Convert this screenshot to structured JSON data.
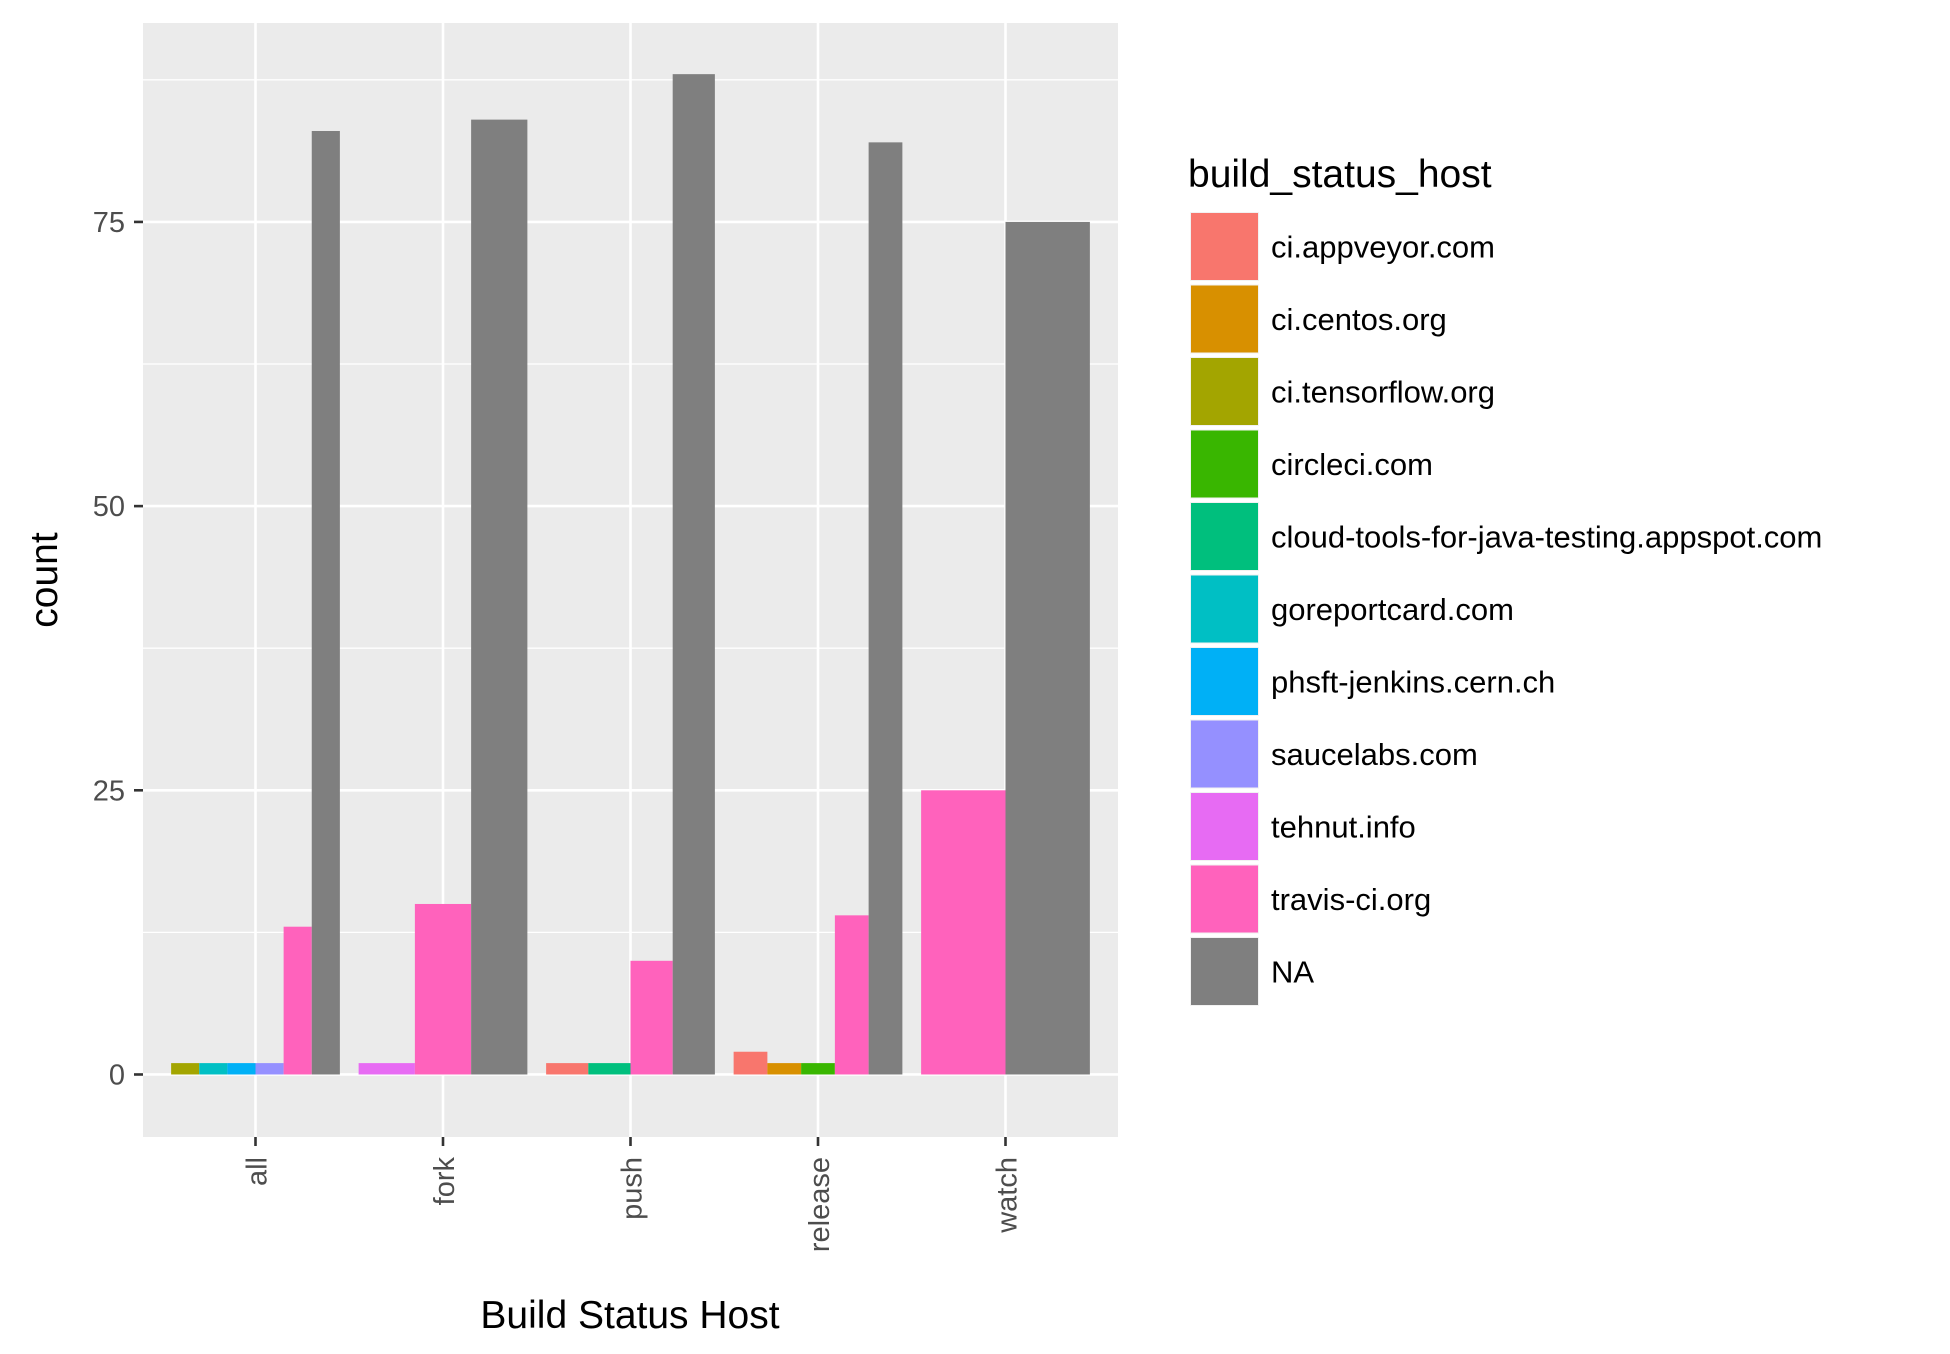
{
  "chart_data": {
    "type": "bar",
    "variant": "dodged",
    "xlabel": "Build Status Host",
    "ylabel": "count",
    "ylim": [
      -5.5,
      92.5
    ],
    "y_ticks": [
      0,
      25,
      50,
      75
    ],
    "grid": true,
    "legend_position": "right",
    "legend_title": "build_status_host",
    "categories": [
      "all",
      "fork",
      "push",
      "release",
      "watch"
    ],
    "series": [
      {
        "name": "ci.appveyor.com",
        "color": "#F8766D",
        "values": [
          0,
          0,
          1,
          2,
          0
        ]
      },
      {
        "name": "ci.centos.org",
        "color": "#D89000",
        "values": [
          0,
          0,
          0,
          1,
          0
        ]
      },
      {
        "name": "ci.tensorflow.org",
        "color": "#A3A500",
        "values": [
          1,
          0,
          0,
          0,
          0
        ]
      },
      {
        "name": "circleci.com",
        "color": "#39B600",
        "values": [
          0,
          0,
          0,
          1,
          0
        ]
      },
      {
        "name": "cloud-tools-for-java-testing.appspot.com",
        "color": "#00BF7D",
        "values": [
          0,
          0,
          1,
          0,
          0
        ]
      },
      {
        "name": "goreportcard.com",
        "color": "#00BFC4",
        "values": [
          1,
          0,
          0,
          0,
          0
        ]
      },
      {
        "name": "phsft-jenkins.cern.ch",
        "color": "#00B0F6",
        "values": [
          1,
          0,
          0,
          0,
          0
        ]
      },
      {
        "name": "saucelabs.com",
        "color": "#9590FF",
        "values": [
          1,
          0,
          0,
          0,
          0
        ]
      },
      {
        "name": "tehnut.info",
        "color": "#E76BF3",
        "values": [
          0,
          1,
          0,
          0,
          0
        ]
      },
      {
        "name": "travis-ci.org",
        "color": "#FF62BC",
        "values": [
          13,
          15,
          10,
          14,
          25
        ]
      },
      {
        "name": "NA",
        "color": "#7F7F7F",
        "values": [
          83,
          84,
          88,
          82,
          75
        ]
      }
    ]
  },
  "colors": {
    "panel_background": "#EBEBEB",
    "grid_line": "#FFFFFF",
    "tick_text": "#4D4D4D",
    "tick_mark": "#333333"
  }
}
